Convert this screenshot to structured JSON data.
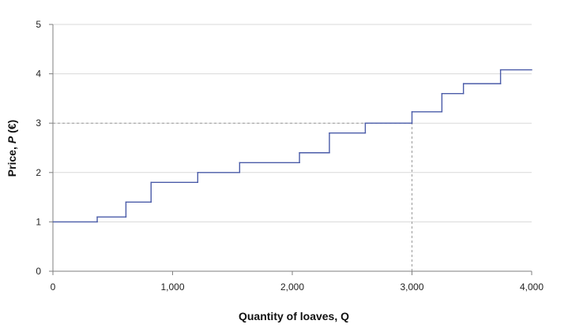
{
  "chart_data": {
    "type": "line",
    "subtype": "step",
    "title": "",
    "xlabel": "Quantity of loaves, Q",
    "ylabel_parts": [
      "Price, ",
      "P",
      " (€)"
    ],
    "xlim": [
      0,
      4000
    ],
    "ylim": [
      0,
      5
    ],
    "xticks": [
      0,
      1000,
      2000,
      3000,
      4000
    ],
    "xtick_labels": [
      "0",
      "1,000",
      "2,000",
      "3,000",
      "4,000"
    ],
    "yticks": [
      0,
      1,
      2,
      3,
      4,
      5
    ],
    "ytick_labels": [
      "0",
      "1",
      "2",
      "3",
      "4",
      "5"
    ],
    "grid": "horizontal",
    "series": [
      {
        "color": "#4a5ba8",
        "points": [
          [
            0,
            1.0
          ],
          [
            370,
            1.0
          ],
          [
            370,
            1.1
          ],
          [
            610,
            1.1
          ],
          [
            610,
            1.4
          ],
          [
            820,
            1.4
          ],
          [
            820,
            1.8
          ],
          [
            1210,
            1.8
          ],
          [
            1210,
            2.0
          ],
          [
            1560,
            2.0
          ],
          [
            1560,
            2.2
          ],
          [
            2060,
            2.2
          ],
          [
            2060,
            2.4
          ],
          [
            2310,
            2.4
          ],
          [
            2310,
            2.8
          ],
          [
            2610,
            2.8
          ],
          [
            2610,
            3.0
          ],
          [
            3000,
            3.0
          ],
          [
            3000,
            3.23
          ],
          [
            3250,
            3.23
          ],
          [
            3250,
            3.6
          ],
          [
            3430,
            3.6
          ],
          [
            3430,
            3.8
          ],
          [
            3740,
            3.8
          ],
          [
            3740,
            4.08
          ],
          [
            4000,
            4.08
          ]
        ]
      }
    ],
    "reference_lines": [
      {
        "orientation": "horizontal",
        "value": 3,
        "from": 0,
        "to": 3000,
        "style": "dashed",
        "color": "#9a9a9a"
      },
      {
        "orientation": "vertical",
        "value": 3000,
        "from": 0,
        "to": 3,
        "style": "dashed",
        "color": "#9a9a9a"
      }
    ],
    "colors": {
      "gridline": "#d9d9d9",
      "axis": "#7f7f7f"
    }
  }
}
